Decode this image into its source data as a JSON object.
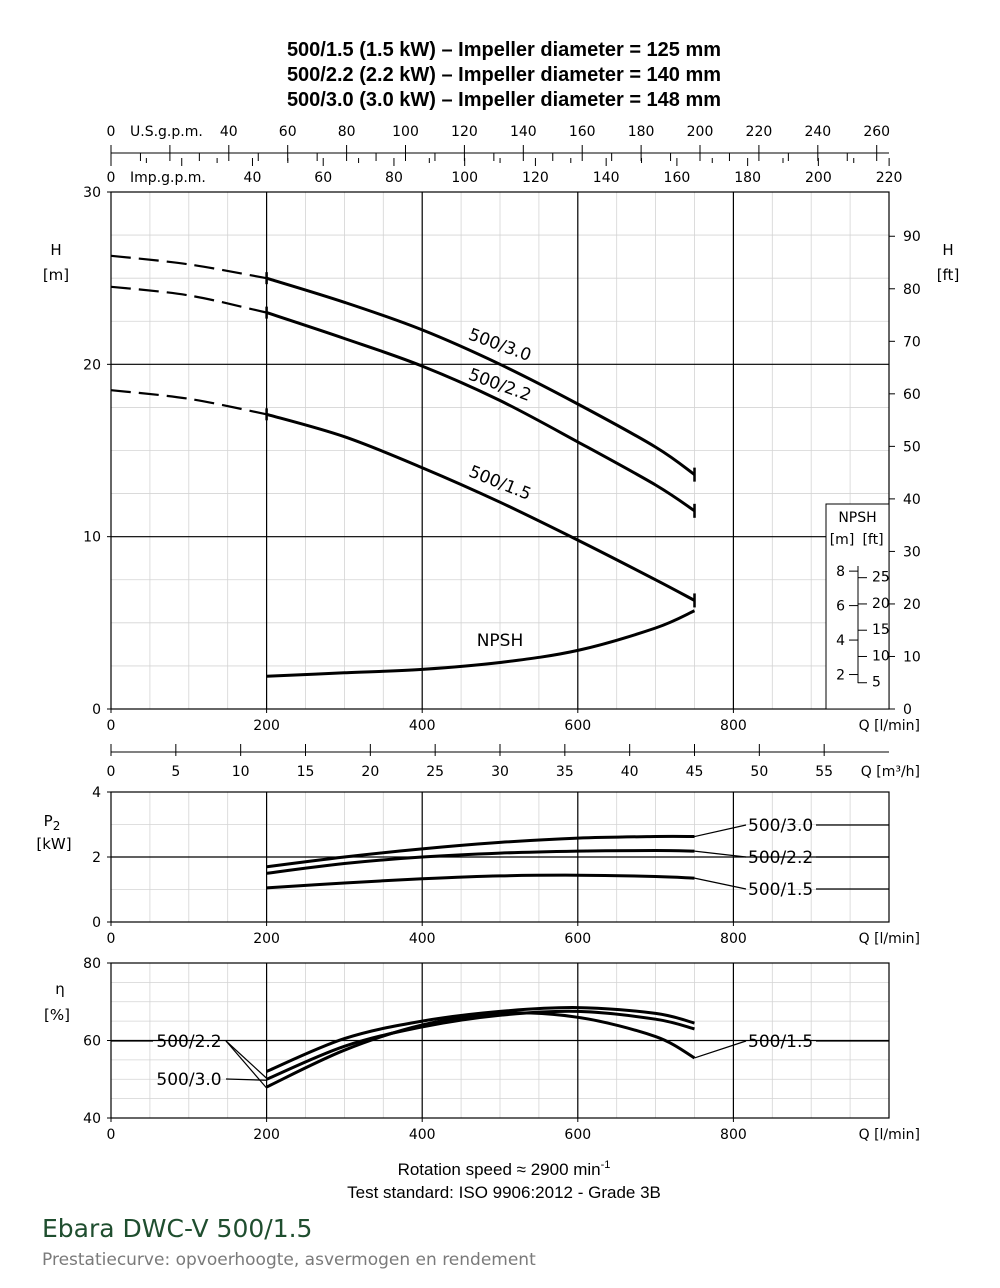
{
  "titles": [
    "500/1.5 (1.5 kW) – Impeller diameter = 125 mm",
    "500/2.2 (2.2 kW) – Impeller diameter = 140 mm",
    "500/3.0 (3.0 kW) – Impeller diameter = 148 mm"
  ],
  "footer": {
    "rotation": "Rotation speed ≈ 2900 min",
    "rotation_sup": "-1",
    "standard": "Test standard: ISO 9906:2012 - Grade 3B"
  },
  "brand": {
    "title": "Ebara DWC-V 500/1.5",
    "subtitle": "Prestatiecurve: opvoerhoogte, asvermogen en rendement"
  },
  "colors": {
    "curve": "#000000",
    "grid_minor": "#d4d4d4",
    "grid_major": "#000000",
    "brand": "#1f4e2f"
  },
  "chart_data": [
    {
      "type": "line",
      "panel": "head",
      "xlabel": "Q [l/min]",
      "ylabel": "H [m]",
      "ylabel_right": "H [ft]",
      "xlim": [
        0,
        1000
      ],
      "ylim": [
        0,
        30
      ],
      "x_ticks": [
        "0",
        "200",
        "400",
        "600",
        "800"
      ],
      "y_ticks": [
        "0",
        "10",
        "20",
        "30"
      ],
      "y_ticks_right": [
        "0",
        "10",
        "20",
        "30",
        "40",
        "50",
        "60",
        "70",
        "80",
        "90"
      ],
      "usgpm_label": "U.S.g.p.m.",
      "usgpm_ticks": [
        "0",
        "40",
        "60",
        "80",
        "100",
        "120",
        "140",
        "160",
        "180",
        "200",
        "220",
        "240",
        "260"
      ],
      "impgpm_label": "Imp.g.p.m.",
      "impgpm_ticks": [
        "0",
        "40",
        "60",
        "80",
        "100",
        "120",
        "140",
        "160",
        "180",
        "200",
        "220"
      ],
      "m3h_label": "Q [m³/h]",
      "m3h_ticks": [
        "0",
        "5",
        "10",
        "15",
        "20",
        "25",
        "30",
        "35",
        "40",
        "45",
        "50",
        "55"
      ],
      "series": [
        {
          "name": "500/3.0",
          "x": [
            0,
            100,
            200,
            300,
            400,
            500,
            600,
            700,
            750
          ],
          "y": [
            26.3,
            25.8,
            25.0,
            23.6,
            22.0,
            20.0,
            17.7,
            15.2,
            13.6
          ],
          "dashed_until": 200
        },
        {
          "name": "500/2.2",
          "x": [
            0,
            100,
            200,
            300,
            400,
            500,
            600,
            700,
            750
          ],
          "y": [
            24.5,
            24.0,
            23.0,
            21.5,
            19.9,
            17.9,
            15.5,
            13.0,
            11.5
          ],
          "dashed_until": 200
        },
        {
          "name": "500/1.5",
          "x": [
            0,
            100,
            200,
            300,
            400,
            500,
            600,
            700,
            750
          ],
          "y": [
            18.5,
            18.0,
            17.1,
            15.8,
            14.0,
            12.0,
            9.8,
            7.5,
            6.3
          ],
          "dashed_until": 200
        },
        {
          "name": "NPSH",
          "x": [
            200,
            300,
            400,
            500,
            600,
            700,
            750
          ],
          "y": [
            1.9,
            2.1,
            2.3,
            2.7,
            3.4,
            4.7,
            5.7
          ]
        }
      ],
      "npsh_box": {
        "title": "NPSH",
        "unit_m": "[m]",
        "unit_ft": "[ft]",
        "m_ticks": [
          "2",
          "4",
          "6",
          "8"
        ],
        "ft_ticks": [
          "5",
          "10",
          "15",
          "20",
          "25"
        ]
      }
    },
    {
      "type": "line",
      "panel": "power",
      "xlabel": "Q [l/min]",
      "ylabel": "P",
      "ylabel_sub": "2",
      "ylabel_unit": "[kW]",
      "xlim": [
        0,
        1000
      ],
      "ylim": [
        0,
        4
      ],
      "x_ticks": [
        "0",
        "200",
        "400",
        "600",
        "800"
      ],
      "y_ticks": [
        "0",
        "2",
        "4"
      ],
      "series": [
        {
          "name": "500/3.0",
          "x": [
            200,
            300,
            400,
            500,
            600,
            700,
            750
          ],
          "y": [
            1.7,
            2.0,
            2.25,
            2.45,
            2.58,
            2.63,
            2.63
          ]
        },
        {
          "name": "500/2.2",
          "x": [
            200,
            300,
            400,
            500,
            600,
            700,
            750
          ],
          "y": [
            1.5,
            1.8,
            2.0,
            2.12,
            2.18,
            2.2,
            2.18
          ]
        },
        {
          "name": "500/1.5",
          "x": [
            200,
            300,
            400,
            500,
            600,
            700,
            750
          ],
          "y": [
            1.05,
            1.2,
            1.33,
            1.42,
            1.44,
            1.4,
            1.35
          ]
        }
      ]
    },
    {
      "type": "line",
      "panel": "efficiency",
      "xlabel": "Q [l/min]",
      "ylabel": "η",
      "ylabel_unit": "[%]",
      "xlim": [
        0,
        1000
      ],
      "ylim": [
        40,
        80
      ],
      "x_ticks": [
        "0",
        "200",
        "400",
        "600",
        "800"
      ],
      "y_ticks": [
        "40",
        "60",
        "80"
      ],
      "series": [
        {
          "name": "500/2.2",
          "x": [
            200,
            300,
            400,
            500,
            600,
            700,
            750
          ],
          "y": [
            52,
            60.5,
            65,
            67.5,
            68.5,
            67,
            64.5
          ]
        },
        {
          "name": "500/3.0",
          "x": [
            200,
            300,
            400,
            500,
            600,
            700,
            750
          ],
          "y": [
            50,
            58.5,
            63.5,
            66.5,
            67.5,
            65.5,
            63
          ]
        },
        {
          "name": "500/1.5",
          "x": [
            200,
            300,
            400,
            500,
            600,
            700,
            750
          ],
          "y": [
            48,
            57.5,
            64,
            67,
            66,
            61,
            55.5
          ]
        }
      ]
    }
  ]
}
